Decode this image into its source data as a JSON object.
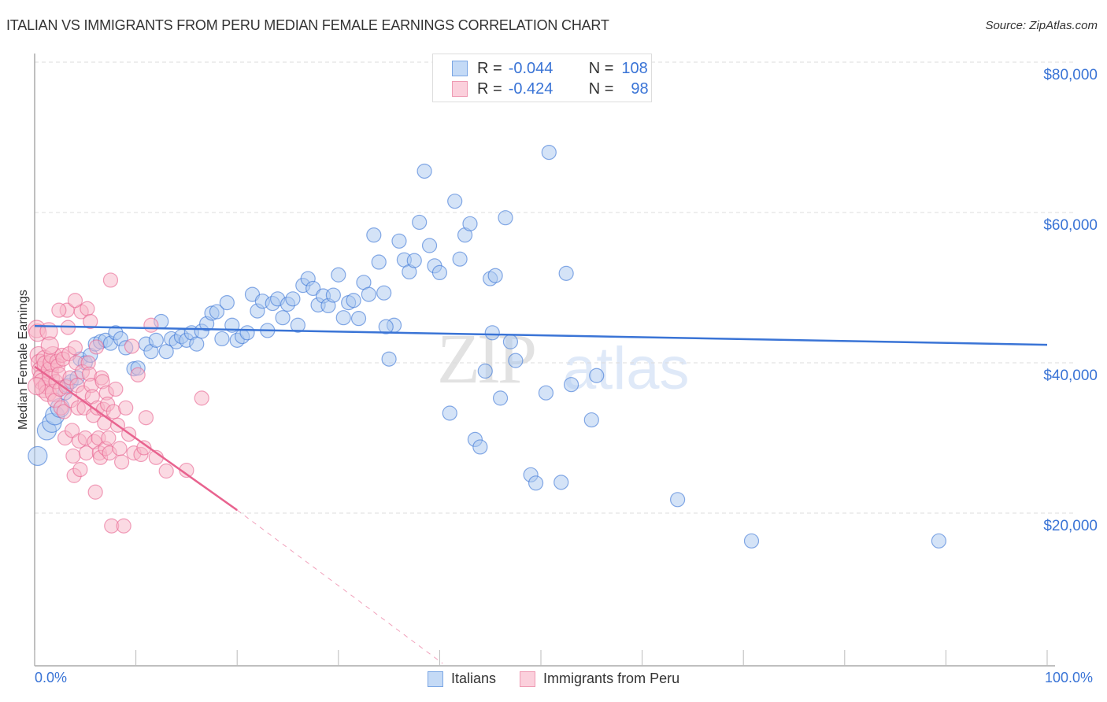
{
  "header": {
    "title": "ITALIAN VS IMMIGRANTS FROM PERU MEDIAN FEMALE EARNINGS CORRELATION CHART",
    "source": "Source: ZipAtlas.com"
  },
  "legend_top": {
    "rows": [
      {
        "r_label": "R =",
        "r_value": "-0.044",
        "n_label": "N =",
        "n_value": "108",
        "color": "#a9c8f0"
      },
      {
        "r_label": "R =",
        "r_value": "-0.424",
        "n_label": "N =",
        "n_value": "98",
        "color": "#f7b6c8"
      }
    ]
  },
  "legend_bottom": {
    "items": [
      {
        "label": "Italians",
        "color": "#a9c8f0"
      },
      {
        "label": "Immigrants from Peru",
        "color": "#f7b6c8"
      }
    ]
  },
  "watermark": {
    "zip": "ZIP",
    "atlas": "atlas"
  },
  "chart_data": {
    "type": "scatter",
    "title": "ITALIAN VS IMMIGRANTS FROM PERU MEDIAN FEMALE EARNINGS CORRELATION CHART",
    "xlabel": "",
    "ylabel": "Median Female Earnings",
    "x_tick_labels": [
      "0.0%",
      "100.0%"
    ],
    "y_tick_labels": [
      "$20,000",
      "$40,000",
      "$60,000",
      "$80,000"
    ],
    "y_ticks": [
      20000,
      40000,
      60000,
      80000
    ],
    "xlim": [
      0,
      100
    ],
    "ylim": [
      0,
      80000
    ],
    "grid": true,
    "legend_position": "top-center",
    "series": [
      {
        "name": "Italians",
        "color": "#3a74d6",
        "fill": "#a9c8f0",
        "R": -0.044,
        "N": 108,
        "trend": {
          "x": [
            0,
            100
          ],
          "y": [
            44900,
            42400
          ]
        },
        "points": [
          [
            0.3,
            27600
          ],
          [
            1.2,
            31000
          ],
          [
            1.7,
            32000
          ],
          [
            2.0,
            33000
          ],
          [
            2.5,
            34000
          ],
          [
            3.0,
            36000
          ],
          [
            3.2,
            37000
          ],
          [
            3.6,
            37500
          ],
          [
            4.2,
            38000
          ],
          [
            4.5,
            40500
          ],
          [
            5.0,
            40000
          ],
          [
            5.5,
            41000
          ],
          [
            6.0,
            42500
          ],
          [
            6.5,
            42800
          ],
          [
            7.0,
            43000
          ],
          [
            7.5,
            42600
          ],
          [
            8.0,
            44000
          ],
          [
            8.5,
            43200
          ],
          [
            9.0,
            42000
          ],
          [
            9.8,
            39200
          ],
          [
            10.2,
            39300
          ],
          [
            11.0,
            42500
          ],
          [
            11.5,
            41500
          ],
          [
            12.0,
            43000
          ],
          [
            12.5,
            45500
          ],
          [
            13.0,
            41500
          ],
          [
            13.5,
            43200
          ],
          [
            14.0,
            42800
          ],
          [
            14.5,
            43500
          ],
          [
            15.0,
            43000
          ],
          [
            15.5,
            44000
          ],
          [
            16.0,
            42500
          ],
          [
            16.5,
            44200
          ],
          [
            17.0,
            45200
          ],
          [
            17.5,
            46600
          ],
          [
            18.0,
            46800
          ],
          [
            18.5,
            43200
          ],
          [
            19.0,
            48000
          ],
          [
            19.5,
            45000
          ],
          [
            20.0,
            43000
          ],
          [
            20.5,
            43500
          ],
          [
            21.0,
            44000
          ],
          [
            21.5,
            49100
          ],
          [
            22.0,
            46900
          ],
          [
            22.5,
            48200
          ],
          [
            23.0,
            44300
          ],
          [
            23.5,
            47900
          ],
          [
            24.0,
            48500
          ],
          [
            24.5,
            46000
          ],
          [
            25.0,
            47800
          ],
          [
            25.5,
            48500
          ],
          [
            26.0,
            45000
          ],
          [
            26.5,
            50300
          ],
          [
            27.0,
            51200
          ],
          [
            27.5,
            49900
          ],
          [
            28.0,
            47700
          ],
          [
            28.5,
            48900
          ],
          [
            29.0,
            47600
          ],
          [
            29.5,
            49000
          ],
          [
            30.0,
            51700
          ],
          [
            30.5,
            46000
          ],
          [
            31.0,
            48000
          ],
          [
            31.5,
            48300
          ],
          [
            32.0,
            45900
          ],
          [
            32.5,
            50700
          ],
          [
            33.0,
            49100
          ],
          [
            33.5,
            57000
          ],
          [
            34.0,
            53400
          ],
          [
            34.5,
            49300
          ],
          [
            35.0,
            40500
          ],
          [
            35.5,
            45000
          ],
          [
            36.0,
            56200
          ],
          [
            36.5,
            53700
          ],
          [
            37.0,
            52100
          ],
          [
            37.5,
            53600
          ],
          [
            38.0,
            58700
          ],
          [
            38.5,
            65500
          ],
          [
            39.0,
            55600
          ],
          [
            39.5,
            52900
          ],
          [
            40.0,
            52000
          ],
          [
            41.0,
            33300
          ],
          [
            41.5,
            61500
          ],
          [
            42.0,
            53800
          ],
          [
            42.5,
            57000
          ],
          [
            43.0,
            58500
          ],
          [
            43.5,
            29800
          ],
          [
            44.0,
            28800
          ],
          [
            44.5,
            38900
          ],
          [
            45.0,
            51200
          ],
          [
            45.5,
            51600
          ],
          [
            46.5,
            59300
          ],
          [
            46.0,
            35300
          ],
          [
            47.0,
            42800
          ],
          [
            47.5,
            40300
          ],
          [
            49.0,
            25100
          ],
          [
            49.5,
            24000
          ],
          [
            50.5,
            36000
          ],
          [
            50.8,
            68000
          ],
          [
            52.0,
            24100
          ],
          [
            53.0,
            37100
          ],
          [
            52.5,
            51900
          ],
          [
            55.5,
            38300
          ],
          [
            55.0,
            32400
          ],
          [
            63.5,
            21800
          ],
          [
            70.8,
            16300
          ],
          [
            89.3,
            16300
          ],
          [
            45.2,
            44000
          ],
          [
            34.7,
            44800
          ]
        ]
      },
      {
        "name": "Immigrants from Peru",
        "color": "#e8638f",
        "fill": "#f7b6c8",
        "R": -0.424,
        "N": 98,
        "trend": {
          "x": [
            0,
            20
          ],
          "y": [
            39500,
            20400
          ]
        },
        "trend_dashed_extension": {
          "x": [
            20,
            40.3
          ],
          "y": [
            20400,
            0
          ]
        },
        "points": [
          [
            0.2,
            44500
          ],
          [
            0.3,
            44000
          ],
          [
            0.4,
            41000
          ],
          [
            0.5,
            40000
          ],
          [
            0.6,
            39000
          ],
          [
            0.7,
            38000
          ],
          [
            0.8,
            37500
          ],
          [
            0.9,
            36500
          ],
          [
            1.0,
            40500
          ],
          [
            1.1,
            39800
          ],
          [
            1.2,
            37000
          ],
          [
            1.3,
            36000
          ],
          [
            1.4,
            44200
          ],
          [
            1.5,
            39000
          ],
          [
            1.6,
            38000
          ],
          [
            1.7,
            40000
          ],
          [
            1.8,
            41000
          ],
          [
            1.9,
            36000
          ],
          [
            2.0,
            35000
          ],
          [
            2.1,
            37500
          ],
          [
            2.2,
            40200
          ],
          [
            2.3,
            39600
          ],
          [
            2.4,
            38500
          ],
          [
            2.5,
            36500
          ],
          [
            2.6,
            34000
          ],
          [
            2.7,
            41000
          ],
          [
            2.8,
            40500
          ],
          [
            2.9,
            33500
          ],
          [
            3.0,
            30000
          ],
          [
            3.1,
            36800
          ],
          [
            3.2,
            47000
          ],
          [
            3.3,
            44700
          ],
          [
            3.4,
            41200
          ],
          [
            3.5,
            38000
          ],
          [
            3.6,
            35000
          ],
          [
            3.7,
            31000
          ],
          [
            3.8,
            27600
          ],
          [
            3.9,
            25000
          ],
          [
            4.0,
            42000
          ],
          [
            4.1,
            40000
          ],
          [
            4.2,
            37000
          ],
          [
            4.3,
            34000
          ],
          [
            4.4,
            29600
          ],
          [
            4.5,
            25800
          ],
          [
            4.6,
            46800
          ],
          [
            4.7,
            38800
          ],
          [
            4.8,
            36000
          ],
          [
            4.9,
            34000
          ],
          [
            5.0,
            30000
          ],
          [
            5.1,
            28000
          ],
          [
            5.2,
            47200
          ],
          [
            5.3,
            40000
          ],
          [
            5.4,
            38500
          ],
          [
            5.5,
            45500
          ],
          [
            5.6,
            37000
          ],
          [
            5.7,
            35500
          ],
          [
            5.8,
            33000
          ],
          [
            5.9,
            29500
          ],
          [
            6.0,
            22800
          ],
          [
            6.1,
            42100
          ],
          [
            6.2,
            34000
          ],
          [
            6.3,
            30000
          ],
          [
            6.4,
            28000
          ],
          [
            6.5,
            27400
          ],
          [
            6.6,
            38000
          ],
          [
            6.7,
            37500
          ],
          [
            6.8,
            33800
          ],
          [
            6.9,
            32000
          ],
          [
            7.0,
            28600
          ],
          [
            7.1,
            36000
          ],
          [
            7.2,
            34500
          ],
          [
            7.3,
            30000
          ],
          [
            7.4,
            28000
          ],
          [
            7.6,
            18300
          ],
          [
            7.8,
            33500
          ],
          [
            8.0,
            36500
          ],
          [
            8.2,
            31700
          ],
          [
            8.4,
            28600
          ],
          [
            8.6,
            26800
          ],
          [
            8.8,
            18300
          ],
          [
            9.0,
            34000
          ],
          [
            9.3,
            30500
          ],
          [
            9.6,
            42200
          ],
          [
            9.8,
            28000
          ],
          [
            10.2,
            38400
          ],
          [
            10.5,
            27800
          ],
          [
            10.8,
            28700
          ],
          [
            11.0,
            32700
          ],
          [
            11.5,
            45000
          ],
          [
            12.0,
            27400
          ],
          [
            13.0,
            25600
          ],
          [
            15.0,
            25700
          ],
          [
            16.5,
            35300
          ],
          [
            7.5,
            51000
          ],
          [
            2.4,
            47000
          ],
          [
            1.5,
            42300
          ],
          [
            0.2,
            36900
          ],
          [
            4.0,
            48300
          ]
        ]
      }
    ]
  }
}
